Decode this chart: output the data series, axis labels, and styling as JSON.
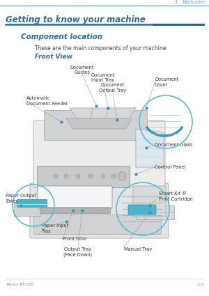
{
  "bg_color": "#ffffff",
  "top_line_color": "#5ba3c9",
  "top_tab_text": "1   Welcome",
  "top_tab_color": "#5ba3c9",
  "section_title": "Getting to know your machine",
  "section_title_color": "#2a6aad",
  "section_underline_color": "#2a6aad",
  "subsection_title": "Component location",
  "subsection_title_color": "#2a6aad",
  "body_text": "These are the main components of your machine:",
  "body_text_color": "#444444",
  "front_view_label": "Front View",
  "front_view_color": "#2a6aad",
  "bottom_left_text": "Xerox PE220",
  "bottom_right_text": "1-3",
  "bottom_text_color": "#888888",
  "label_color": "#333333",
  "label_fontsize": 4.8,
  "circle_color": "#5bbdd4",
  "line_color": "#888888",
  "dot_color": "#2a9aaa"
}
